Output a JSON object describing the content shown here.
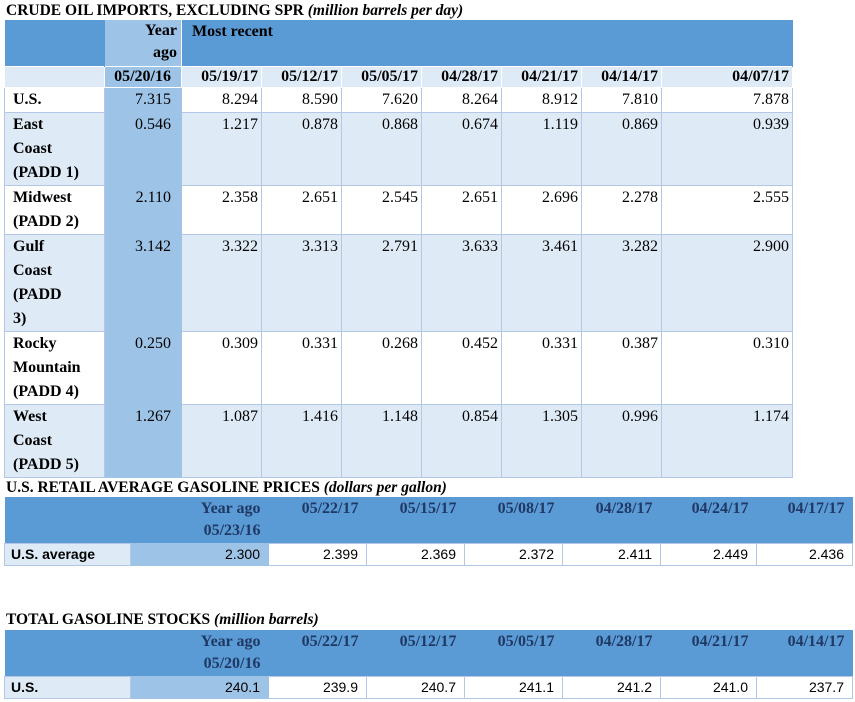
{
  "crude": {
    "title": "CRUDE OIL IMPORTS, EXCLUDING SPR",
    "unit": "(million barrels per day)",
    "year_ago_label": "Year ago",
    "most_recent_label": "Most recent",
    "dates": [
      "05/20/16",
      "05/19/17",
      "05/12/17",
      "05/05/17",
      "04/28/17",
      "04/21/17",
      "04/14/17",
      "04/07/17"
    ],
    "rows": [
      {
        "label": "U.S.",
        "values": [
          "7.315",
          "8.294",
          "8.590",
          "7.620",
          "8.264",
          "8.912",
          "7.810",
          "7.878"
        ]
      },
      {
        "label": "East Coast (PADD 1)",
        "values": [
          "0.546",
          "1.217",
          "0.878",
          "0.868",
          "0.674",
          "1.119",
          "0.869",
          "0.939"
        ]
      },
      {
        "label": "Midwest (PADD 2)",
        "values": [
          "2.110",
          "2.358",
          "2.651",
          "2.545",
          "2.651",
          "2.696",
          "2.278",
          "2.555"
        ]
      },
      {
        "label": "Gulf Coast (PADD 3)",
        "values": [
          "3.142",
          "3.322",
          "3.313",
          "2.791",
          "3.633",
          "3.461",
          "3.282",
          "2.900"
        ]
      },
      {
        "label": "Rocky Mountain (PADD 4)",
        "values": [
          "0.250",
          "0.309",
          "0.331",
          "0.268",
          "0.452",
          "0.331",
          "0.387",
          "0.310"
        ]
      },
      {
        "label": "West Coast (PADD 5)",
        "values": [
          "1.267",
          "1.087",
          "1.416",
          "1.148",
          "0.854",
          "1.305",
          "0.996",
          "1.174"
        ]
      }
    ]
  },
  "gas_prices": {
    "title": "U.S. RETAIL AVERAGE GASOLINE PRICES",
    "unit": "(dollars per gallon)",
    "year_ago_label": "Year ago",
    "year_ago_date": "05/23/16",
    "dates": [
      "05/22/17",
      "05/15/17",
      "05/08/17",
      "04/28/17",
      "04/24/17",
      "04/17/17"
    ],
    "row_label": "U.S. average",
    "year_ago_value": "2.300",
    "values": [
      "2.399",
      "2.369",
      "2.372",
      "2.411",
      "2.449",
      "2.436"
    ]
  },
  "gas_stocks": {
    "title": "TOTAL GASOLINE STOCKS",
    "unit": "(million barrels)",
    "year_ago_label": "Year ago",
    "year_ago_date": "05/20/16",
    "dates": [
      "05/22/17",
      "05/12/17",
      "05/05/17",
      "04/28/17",
      "04/21/17",
      "04/14/17"
    ],
    "row_label": "U.S.",
    "year_ago_value": "240.1",
    "values": [
      "239.9",
      "240.7",
      "241.1",
      "241.2",
      "241.0",
      "237.7"
    ]
  }
}
